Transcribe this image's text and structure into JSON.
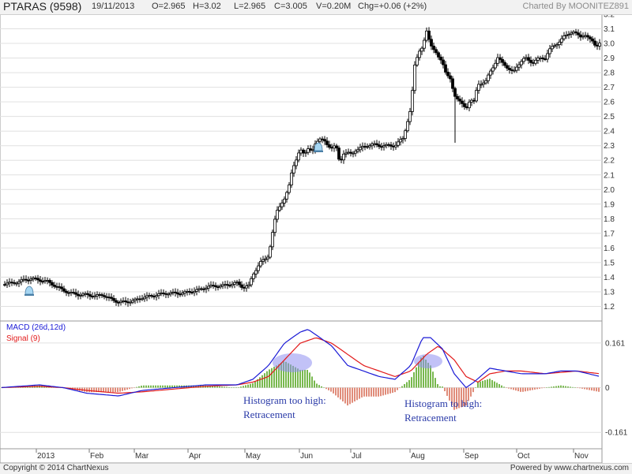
{
  "header": {
    "symbol": "PTARAS (9598)",
    "date": "19/11/2013",
    "open": "O=2.965",
    "high": "H=3.02",
    "low": "L=2.965",
    "close": "C=3.005",
    "volume": "V=0.20M",
    "change": "Chg=+0.06 (+2%)",
    "credit": "Charted By MOONITEZ891"
  },
  "footer": {
    "copyright": "Copyright © 2014 ChartNexus",
    "powered": "Powered by www.chartnexus.com"
  },
  "chart_data": [
    {
      "type": "candlestick",
      "y_ticks": [
        "3.2",
        "3.1",
        "3.0",
        "2.9",
        "2.8",
        "2.7",
        "2.6",
        "2.5",
        "2.4",
        "2.3",
        "2.2",
        "2.1",
        "2.0",
        "1.9",
        "1.8",
        "1.7",
        "1.6",
        "1.5",
        "1.4",
        "1.3",
        "1.2"
      ],
      "ylim": [
        1.1,
        3.2
      ],
      "x_ticks": [
        "2013",
        "Feb",
        "Mar",
        "Apr",
        "May",
        "Jun",
        "Jul",
        "Aug",
        "Sep",
        "Oct",
        "Nov"
      ],
      "close_anchors": [
        [
          0,
          1.35
        ],
        [
          15,
          1.36
        ],
        [
          25,
          1.37
        ],
        [
          30,
          1.38
        ],
        [
          40,
          1.39
        ],
        [
          50,
          1.38
        ],
        [
          60,
          1.37
        ],
        [
          70,
          1.34
        ],
        [
          80,
          1.31
        ],
        [
          90,
          1.29
        ],
        [
          100,
          1.28
        ],
        [
          110,
          1.28
        ],
        [
          120,
          1.27
        ],
        [
          130,
          1.28
        ],
        [
          140,
          1.25
        ],
        [
          150,
          1.23
        ],
        [
          160,
          1.23
        ],
        [
          170,
          1.24
        ],
        [
          180,
          1.26
        ],
        [
          190,
          1.27
        ],
        [
          200,
          1.28
        ],
        [
          210,
          1.29
        ],
        [
          220,
          1.29
        ],
        [
          230,
          1.29
        ],
        [
          240,
          1.3
        ],
        [
          250,
          1.31
        ],
        [
          260,
          1.33
        ],
        [
          270,
          1.34
        ],
        [
          280,
          1.34
        ],
        [
          290,
          1.35
        ],
        [
          300,
          1.36
        ],
        [
          308,
          1.33
        ],
        [
          315,
          1.34
        ],
        [
          320,
          1.42
        ],
        [
          330,
          1.5
        ],
        [
          340,
          1.55
        ],
        [
          345,
          1.7
        ],
        [
          350,
          1.85
        ],
        [
          355,
          1.9
        ],
        [
          360,
          1.93
        ],
        [
          365,
          2.0
        ],
        [
          370,
          2.15
        ],
        [
          375,
          2.2
        ],
        [
          380,
          2.27
        ],
        [
          385,
          2.25
        ],
        [
          390,
          2.28
        ],
        [
          395,
          2.25
        ],
        [
          400,
          2.33
        ],
        [
          405,
          2.35
        ],
        [
          410,
          2.33
        ],
        [
          415,
          2.3
        ],
        [
          420,
          2.29
        ],
        [
          425,
          2.3
        ],
        [
          430,
          2.18
        ],
        [
          435,
          2.25
        ],
        [
          440,
          2.25
        ],
        [
          445,
          2.24
        ],
        [
          450,
          2.27
        ],
        [
          460,
          2.29
        ],
        [
          470,
          2.31
        ],
        [
          480,
          2.3
        ],
        [
          490,
          2.3
        ],
        [
          500,
          2.3
        ],
        [
          510,
          2.35
        ],
        [
          515,
          2.45
        ],
        [
          520,
          2.55
        ],
        [
          525,
          2.85
        ],
        [
          530,
          2.95
        ],
        [
          535,
          2.97
        ],
        [
          540,
          3.08
        ],
        [
          545,
          3.0
        ],
        [
          550,
          2.95
        ],
        [
          555,
          2.9
        ],
        [
          560,
          2.88
        ],
        [
          565,
          2.79
        ],
        [
          570,
          2.75
        ],
        [
          575,
          2.65
        ],
        [
          580,
          2.62
        ],
        [
          585,
          2.58
        ],
        [
          590,
          2.55
        ],
        [
          595,
          2.62
        ],
        [
          600,
          2.6
        ],
        [
          605,
          2.72
        ],
        [
          610,
          2.73
        ],
        [
          615,
          2.74
        ],
        [
          620,
          2.8
        ],
        [
          625,
          2.85
        ],
        [
          630,
          2.9
        ],
        [
          635,
          2.87
        ],
        [
          640,
          2.85
        ],
        [
          645,
          2.82
        ],
        [
          650,
          2.8
        ],
        [
          655,
          2.85
        ],
        [
          660,
          2.88
        ],
        [
          665,
          2.9
        ],
        [
          670,
          2.88
        ],
        [
          675,
          2.87
        ],
        [
          680,
          2.89
        ],
        [
          685,
          2.9
        ],
        [
          690,
          2.9
        ],
        [
          695,
          2.95
        ],
        [
          700,
          2.98
        ],
        [
          705,
          3.0
        ],
        [
          710,
          3.02
        ],
        [
          715,
          3.05
        ],
        [
          720,
          3.07
        ],
        [
          725,
          3.08
        ],
        [
          730,
          3.06
        ],
        [
          735,
          3.05
        ],
        [
          740,
          3.06
        ],
        [
          745,
          3.03
        ],
        [
          750,
          3.02
        ],
        [
          755,
          2.98
        ],
        [
          760,
          3.0
        ]
      ]
    },
    {
      "type": "line+histogram",
      "legend": [
        {
          "name": "MACD (26d,12d)",
          "color": "#1a1ad6"
        },
        {
          "name": "Signal (9)",
          "color": "#e21a1a"
        }
      ],
      "y_ticks": [
        "0.161",
        "0",
        "-0.161"
      ],
      "ylim": [
        -0.22,
        0.24
      ],
      "macd_anchors": [
        [
          0,
          0.0
        ],
        [
          50,
          0.01
        ],
        [
          80,
          0.0
        ],
        [
          110,
          -0.02
        ],
        [
          150,
          -0.03
        ],
        [
          180,
          -0.01
        ],
        [
          220,
          0.0
        ],
        [
          260,
          0.01
        ],
        [
          300,
          0.01
        ],
        [
          320,
          0.03
        ],
        [
          340,
          0.08
        ],
        [
          360,
          0.16
        ],
        [
          380,
          0.2
        ],
        [
          390,
          0.21
        ],
        [
          400,
          0.19
        ],
        [
          420,
          0.15
        ],
        [
          440,
          0.08
        ],
        [
          460,
          0.06
        ],
        [
          480,
          0.04
        ],
        [
          500,
          0.03
        ],
        [
          520,
          0.08
        ],
        [
          535,
          0.18
        ],
        [
          545,
          0.18
        ],
        [
          560,
          0.14
        ],
        [
          575,
          0.05
        ],
        [
          590,
          0.0
        ],
        [
          600,
          0.02
        ],
        [
          620,
          0.07
        ],
        [
          640,
          0.06
        ],
        [
          660,
          0.05
        ],
        [
          690,
          0.05
        ],
        [
          710,
          0.06
        ],
        [
          730,
          0.06
        ],
        [
          760,
          0.04
        ]
      ],
      "signal_anchors": [
        [
          0,
          0.0
        ],
        [
          50,
          0.005
        ],
        [
          80,
          0.0
        ],
        [
          110,
          -0.01
        ],
        [
          150,
          -0.02
        ],
        [
          180,
          -0.015
        ],
        [
          220,
          -0.005
        ],
        [
          260,
          0.005
        ],
        [
          300,
          0.01
        ],
        [
          320,
          0.02
        ],
        [
          340,
          0.04
        ],
        [
          360,
          0.1
        ],
        [
          380,
          0.16
        ],
        [
          400,
          0.18
        ],
        [
          420,
          0.16
        ],
        [
          440,
          0.12
        ],
        [
          460,
          0.08
        ],
        [
          480,
          0.06
        ],
        [
          500,
          0.04
        ],
        [
          520,
          0.06
        ],
        [
          540,
          0.12
        ],
        [
          555,
          0.15
        ],
        [
          575,
          0.1
        ],
        [
          590,
          0.04
        ],
        [
          605,
          0.02
        ],
        [
          620,
          0.05
        ],
        [
          640,
          0.06
        ],
        [
          660,
          0.06
        ],
        [
          690,
          0.05
        ],
        [
          710,
          0.055
        ],
        [
          730,
          0.06
        ],
        [
          760,
          0.05
        ]
      ]
    }
  ],
  "annotations": [
    {
      "line1": "Histogram too high:",
      "line2": "Retracement"
    },
    {
      "line1": "Histogram to high:",
      "line2": "Retracement"
    }
  ],
  "colors": {
    "grid": "#e0e0e0",
    "up_candle": "#ffffff",
    "down_candle": "#000000",
    "hist_pos": "#78b84e",
    "hist_neg": "#e08c7a",
    "highlight": "#9b9bf0"
  }
}
